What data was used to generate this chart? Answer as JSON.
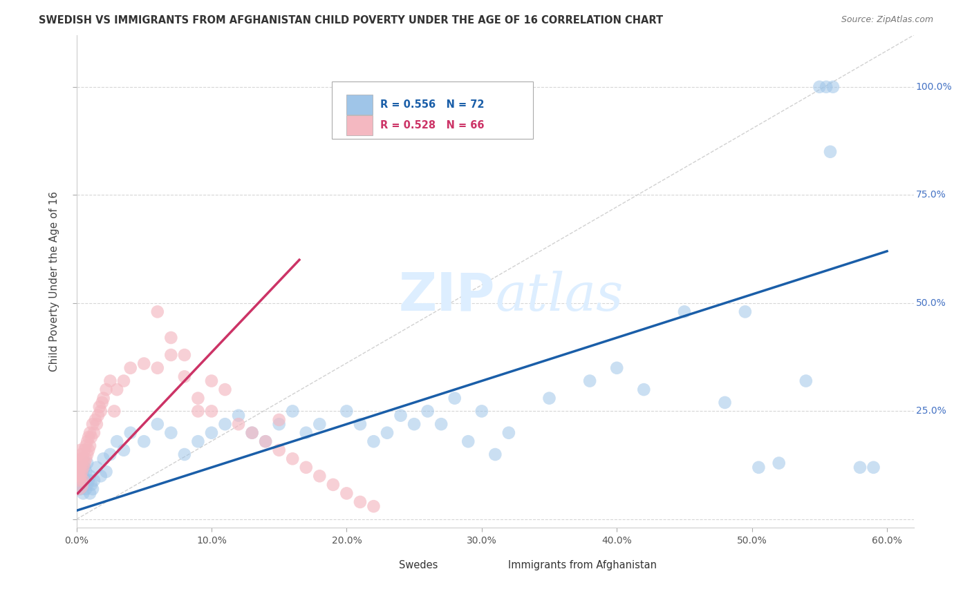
{
  "title": "SWEDISH VS IMMIGRANTS FROM AFGHANISTAN CHILD POVERTY UNDER THE AGE OF 16 CORRELATION CHART",
  "source": "Source: ZipAtlas.com",
  "ylabel_label": "Child Poverty Under the Age of 16",
  "xlim": [
    0.0,
    0.62
  ],
  "ylim": [
    -0.02,
    1.12
  ],
  "swedes_color": "#9fc5e8",
  "afghan_color": "#f4b8c1",
  "blue_line_color": "#1a5ea8",
  "pink_line_color": "#cc3366",
  "ref_line_color": "#cccccc",
  "grid_color": "#cccccc",
  "ytick_color": "#4472c4",
  "watermark_text": "ZIPatlas",
  "watermark_color": "#ddeeff",
  "scatter_size": 180,
  "big_cluster_size": 500,
  "swedes_x": [
    0.001,
    0.002,
    0.002,
    0.003,
    0.003,
    0.004,
    0.004,
    0.005,
    0.005,
    0.006,
    0.006,
    0.007,
    0.007,
    0.008,
    0.008,
    0.009,
    0.01,
    0.01,
    0.011,
    0.012,
    0.013,
    0.015,
    0.018,
    0.02,
    0.022,
    0.025,
    0.03,
    0.035,
    0.04,
    0.05,
    0.06,
    0.07,
    0.08,
    0.09,
    0.1,
    0.11,
    0.12,
    0.13,
    0.14,
    0.15,
    0.16,
    0.17,
    0.18,
    0.2,
    0.21,
    0.22,
    0.23,
    0.24,
    0.25,
    0.26,
    0.27,
    0.28,
    0.29,
    0.3,
    0.31,
    0.32,
    0.35,
    0.38,
    0.4,
    0.42,
    0.45,
    0.48,
    0.495,
    0.505,
    0.52,
    0.54,
    0.55,
    0.555,
    0.558,
    0.56,
    0.58,
    0.59
  ],
  "swedes_y": [
    0.08,
    0.1,
    0.12,
    0.07,
    0.09,
    0.11,
    0.08,
    0.06,
    0.1,
    0.09,
    0.12,
    0.07,
    0.11,
    0.08,
    0.13,
    0.09,
    0.06,
    0.1,
    0.08,
    0.07,
    0.09,
    0.12,
    0.1,
    0.14,
    0.11,
    0.15,
    0.18,
    0.16,
    0.2,
    0.18,
    0.22,
    0.2,
    0.15,
    0.18,
    0.2,
    0.22,
    0.24,
    0.2,
    0.18,
    0.22,
    0.25,
    0.2,
    0.22,
    0.25,
    0.22,
    0.18,
    0.2,
    0.24,
    0.22,
    0.25,
    0.22,
    0.28,
    0.18,
    0.25,
    0.15,
    0.2,
    0.28,
    0.32,
    0.35,
    0.3,
    0.48,
    0.27,
    0.48,
    0.12,
    0.13,
    0.32,
    1.0,
    1.0,
    0.85,
    1.0,
    0.12,
    0.12
  ],
  "afghan_x": [
    0.001,
    0.001,
    0.001,
    0.002,
    0.002,
    0.002,
    0.003,
    0.003,
    0.003,
    0.003,
    0.004,
    0.004,
    0.004,
    0.005,
    0.005,
    0.005,
    0.006,
    0.006,
    0.007,
    0.007,
    0.008,
    0.008,
    0.009,
    0.009,
    0.01,
    0.01,
    0.011,
    0.012,
    0.013,
    0.014,
    0.015,
    0.016,
    0.017,
    0.018,
    0.019,
    0.02,
    0.022,
    0.025,
    0.028,
    0.03,
    0.035,
    0.04,
    0.05,
    0.06,
    0.07,
    0.08,
    0.09,
    0.1,
    0.11,
    0.12,
    0.13,
    0.14,
    0.15,
    0.16,
    0.17,
    0.18,
    0.19,
    0.2,
    0.21,
    0.22,
    0.06,
    0.07,
    0.08,
    0.09,
    0.1,
    0.15
  ],
  "afghan_y": [
    0.08,
    0.1,
    0.12,
    0.09,
    0.11,
    0.13,
    0.1,
    0.12,
    0.14,
    0.16,
    0.11,
    0.13,
    0.15,
    0.09,
    0.12,
    0.14,
    0.13,
    0.16,
    0.14,
    0.17,
    0.15,
    0.18,
    0.16,
    0.19,
    0.17,
    0.2,
    0.19,
    0.22,
    0.2,
    0.23,
    0.22,
    0.24,
    0.26,
    0.25,
    0.27,
    0.28,
    0.3,
    0.32,
    0.25,
    0.3,
    0.32,
    0.35,
    0.36,
    0.35,
    0.38,
    0.33,
    0.28,
    0.25,
    0.3,
    0.22,
    0.2,
    0.18,
    0.16,
    0.14,
    0.12,
    0.1,
    0.08,
    0.06,
    0.04,
    0.03,
    0.48,
    0.42,
    0.38,
    0.25,
    0.32,
    0.23
  ],
  "blue_line_x": [
    0.0,
    0.6
  ],
  "blue_line_y": [
    0.02,
    0.62
  ],
  "pink_line_x": [
    0.001,
    0.165
  ],
  "pink_line_y": [
    0.06,
    0.6
  ]
}
